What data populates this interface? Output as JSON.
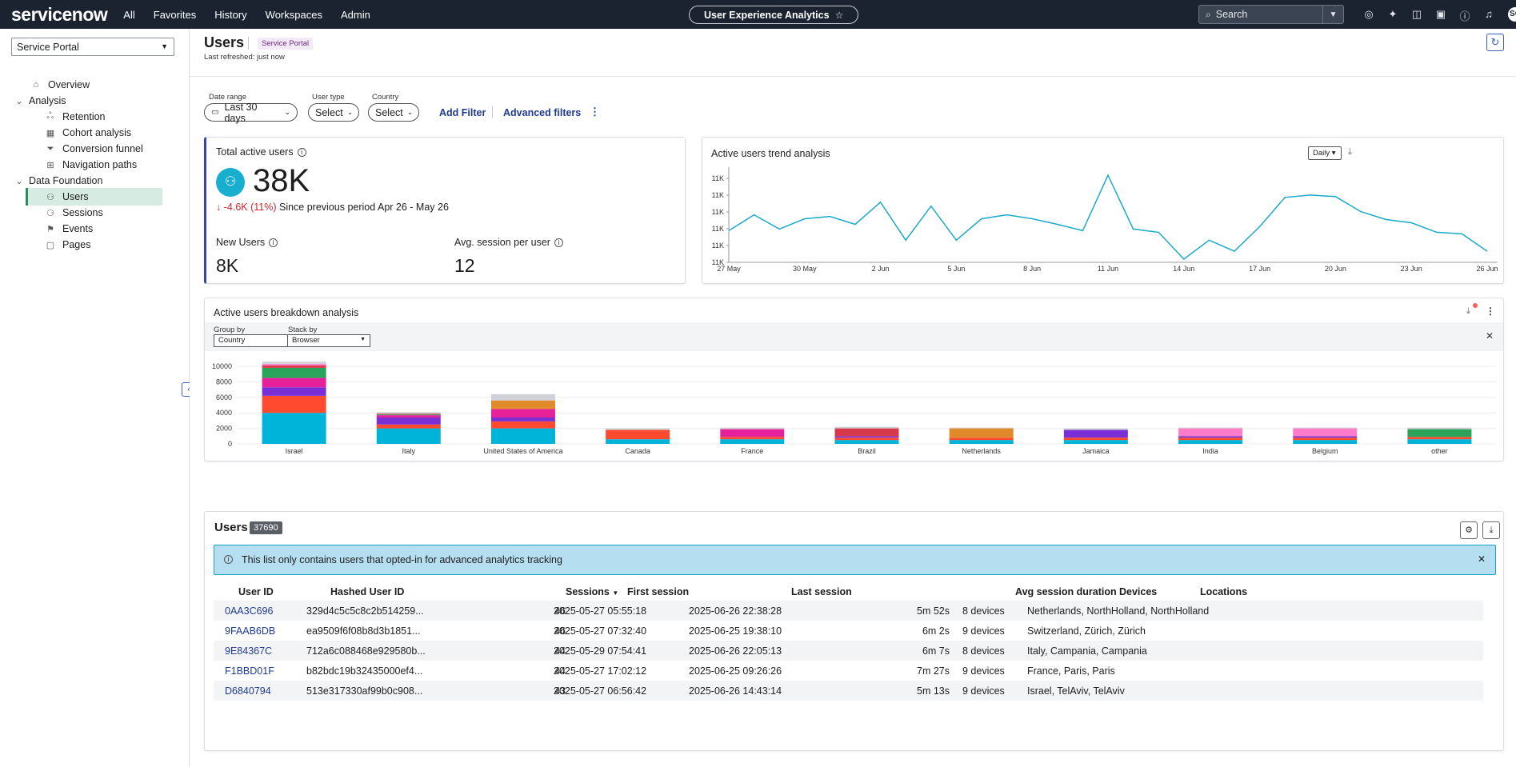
{
  "topbar": {
    "logo": "servicenow",
    "nav": [
      "All",
      "Favorites",
      "History",
      "Workspaces",
      "Admin"
    ],
    "context_app": "User Experience Analytics",
    "search_placeholder": "Search",
    "avatar_initials": "SC"
  },
  "sidebar": {
    "portal": "Service Portal",
    "items": [
      {
        "label": "Overview",
        "icon": "home-icon",
        "level": 0
      },
      {
        "label": "Analysis",
        "icon": "chevron-down-icon",
        "level": 0
      },
      {
        "label": "Retention",
        "icon": "retention-icon",
        "level": 1
      },
      {
        "label": "Cohort analysis",
        "icon": "cohort-icon",
        "level": 1
      },
      {
        "label": "Conversion funnel",
        "icon": "funnel-icon",
        "level": 1
      },
      {
        "label": "Navigation paths",
        "icon": "paths-icon",
        "level": 1
      },
      {
        "label": "Data Foundation",
        "icon": "chevron-down-icon",
        "level": 0
      },
      {
        "label": "Users",
        "icon": "users-icon",
        "level": 1
      },
      {
        "label": "Sessions",
        "icon": "sessions-icon",
        "level": 1
      },
      {
        "label": "Events",
        "icon": "flag-icon",
        "level": 1
      },
      {
        "label": "Pages",
        "icon": "page-icon",
        "level": 1
      }
    ]
  },
  "header": {
    "title": "Users",
    "badge": "Service Portal",
    "refreshed": "Last refreshed: just now"
  },
  "filters": {
    "date_range_label": "Date range",
    "date_range_value": "Last 30 days",
    "user_type_label": "User type",
    "user_type_value": "Select",
    "country_label": "Country",
    "country_value": "Select",
    "add_filter": "Add Filter",
    "advanced_filters": "Advanced filters"
  },
  "kpi": {
    "total_title": "Total active users",
    "total_value": "38K",
    "change": "-4.6K (11%)",
    "change_note": "Since previous period Apr 26 - May 26",
    "new_users_title": "New Users",
    "new_users_value": "8K",
    "avg_session_title": "Avg. session per user",
    "avg_session_value": "12"
  },
  "trend": {
    "title": "Active users trend analysis",
    "granularity": "Daily"
  },
  "breakdown": {
    "title": "Active users breakdown analysis",
    "group_by_label": "Group by",
    "group_by_value": "Country",
    "stack_by_label": "Stack by",
    "stack_by_value": "Browser"
  },
  "users_table": {
    "title": "Users",
    "count": "37690",
    "notice": "This list only contains users that opted-in for advanced analytics tracking",
    "columns": [
      "User ID",
      "Hashed User ID",
      "Sessions",
      "First session",
      "Last session",
      "Avg session duration",
      "Devices",
      "Locations"
    ],
    "rows": [
      [
        "0AA3C696",
        "329d4c5c5c8c2b514259...",
        "46",
        "2025-05-27 05:55:18",
        "2025-06-26 22:38:28",
        "5m 52s",
        "8 devices",
        "Netherlands, NorthHolland, NorthHolland"
      ],
      [
        "9FAAB6DB",
        "ea9509f6f08b8d3b1851...",
        "46",
        "2025-05-27 07:32:40",
        "2025-06-25 19:38:10",
        "6m 2s",
        "9 devices",
        "Switzerland, Zürich, Zürich"
      ],
      [
        "9E84367C",
        "712a6c088468e929580b...",
        "44",
        "2025-05-29 07:54:41",
        "2025-06-26 22:05:13",
        "6m 7s",
        "8 devices",
        "Italy, Campania, Campania"
      ],
      [
        "F1BBD01F",
        "b82bdc19b32435000ef4...",
        "44",
        "2025-05-27 17:02:12",
        "2025-06-25 09:26:26",
        "7m 27s",
        "9 devices",
        "France, Paris, Paris"
      ],
      [
        "D6840794",
        "513e317330af99b0c908...",
        "43",
        "2025-05-27 06:56:42",
        "2025-06-26 14:43:14",
        "5m 13s",
        "9 devices",
        "Israel, TelAviv, TelAviv"
      ]
    ]
  },
  "chart_data": [
    {
      "type": "line",
      "title": "Active users trend analysis",
      "x_ticks": [
        "27 May",
        "30 May",
        "2 Jun",
        "5 Jun",
        "8 Jun",
        "11 Jun",
        "14 Jun",
        "17 Jun",
        "20 Jun",
        "23 Jun",
        "26 Jun"
      ],
      "y_ticks": [
        "11K",
        "11K",
        "11K",
        "11K",
        "11K",
        "11K"
      ],
      "ylim": [
        0,
        100
      ],
      "values": [
        40,
        60,
        42,
        55,
        58,
        48,
        76,
        28,
        71,
        28,
        55,
        60,
        55,
        48,
        40,
        110,
        42,
        38,
        4,
        28,
        14,
        45,
        82,
        85,
        83,
        64,
        54,
        50,
        38,
        36,
        14
      ],
      "color": "#1aa9c9"
    },
    {
      "type": "bar",
      "title": "Active users breakdown analysis",
      "categories": [
        "Israel",
        "Italy",
        "United States of America",
        "Canada",
        "France",
        "Brazil",
        "Netherlands",
        "Jamaica",
        "India",
        "Belgium",
        "other"
      ],
      "y_ticks": [
        "10000",
        "8000",
        "6000",
        "4000",
        "2000",
        "0"
      ],
      "ylim": [
        0,
        10000
      ],
      "segment_colors": [
        "#00b3d9",
        "#ff4a2f",
        "#7a2fd6",
        "#e6219a",
        "#2aa45a",
        "#d63a4a",
        "#e08a2b",
        "#ff7ccb",
        "#cfd1d6"
      ],
      "stacks": [
        [
          4000,
          2200,
          1100,
          1200,
          1300,
          300,
          0,
          200,
          300
        ],
        [
          2000,
          500,
          900,
          300,
          100,
          100,
          0,
          0,
          200
        ],
        [
          2000,
          900,
          500,
          1100,
          0,
          0,
          1100,
          0,
          800
        ],
        [
          600,
          1200,
          0,
          0,
          0,
          0,
          0,
          0,
          200
        ],
        [
          600,
          300,
          0,
          1000,
          0,
          0,
          0,
          0,
          200
        ],
        [
          500,
          300,
          200,
          0,
          0,
          1000,
          0,
          0,
          200
        ],
        [
          500,
          300,
          0,
          0,
          0,
          0,
          1200,
          0,
          100
        ],
        [
          500,
          300,
          1000,
          0,
          0,
          0,
          0,
          0,
          200
        ],
        [
          500,
          300,
          200,
          0,
          0,
          0,
          0,
          1000,
          100
        ],
        [
          500,
          300,
          200,
          0,
          0,
          0,
          0,
          1000,
          100
        ],
        [
          600,
          300,
          0,
          0,
          1000,
          0,
          0,
          0,
          200
        ]
      ]
    }
  ]
}
